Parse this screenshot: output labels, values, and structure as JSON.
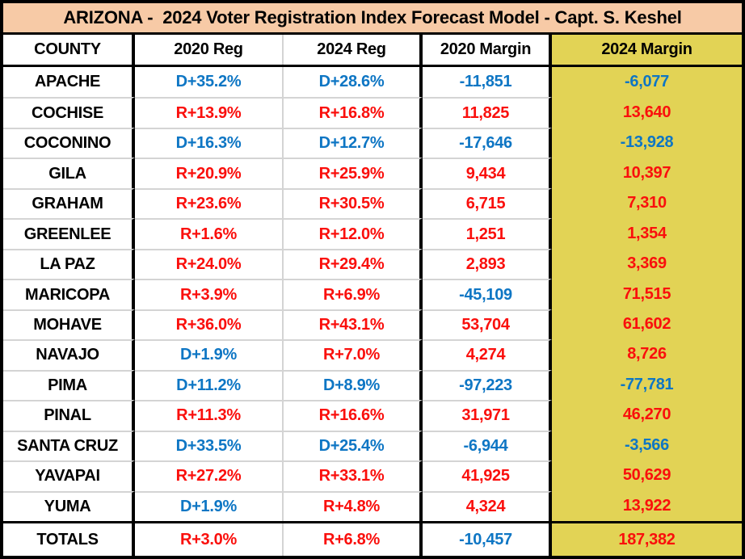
{
  "colors": {
    "title_bg": "#F7CAA6",
    "highlight_column_bg": "#E2D355",
    "dem_blue": "#0E76C4",
    "rep_red": "#FA0F0C",
    "grid_line": "#D4D4D4",
    "border": "#000000"
  },
  "chart_data": {
    "type": "table",
    "title": "ARIZONA -  2024 Voter Registration Index Forecast Model - Capt. S. Keshel",
    "columns": [
      "COUNTY",
      "2020 Reg",
      "2024 Reg",
      "2020 Margin",
      "2024 Margin"
    ],
    "highlighted_column": "2024 Margin",
    "rows": [
      {
        "county": "APACHE",
        "values": [
          "D+35.2%",
          "D+28.6%",
          "-11,851",
          "-6,077"
        ]
      },
      {
        "county": "COCHISE",
        "values": [
          "R+13.9%",
          "R+16.8%",
          "11,825",
          "13,640"
        ]
      },
      {
        "county": "COCONINO",
        "values": [
          "D+16.3%",
          "D+12.7%",
          "-17,646",
          "-13,928"
        ]
      },
      {
        "county": "GILA",
        "values": [
          "R+20.9%",
          "R+25.9%",
          "9,434",
          "10,397"
        ]
      },
      {
        "county": "GRAHAM",
        "values": [
          "R+23.6%",
          "R+30.5%",
          "6,715",
          "7,310"
        ]
      },
      {
        "county": "GREENLEE",
        "values": [
          "R+1.6%",
          "R+12.0%",
          "1,251",
          "1,354"
        ]
      },
      {
        "county": "LA PAZ",
        "values": [
          "R+24.0%",
          "R+29.4%",
          "2,893",
          "3,369"
        ]
      },
      {
        "county": "MARICOPA",
        "values": [
          "R+3.9%",
          "R+6.9%",
          "-45,109",
          "71,515"
        ]
      },
      {
        "county": "MOHAVE",
        "values": [
          "R+36.0%",
          "R+43.1%",
          "53,704",
          "61,602"
        ]
      },
      {
        "county": "NAVAJO",
        "values": [
          "D+1.9%",
          "R+7.0%",
          "4,274",
          "8,726"
        ]
      },
      {
        "county": "PIMA",
        "values": [
          "D+11.2%",
          "D+8.9%",
          "-97,223",
          "-77,781"
        ]
      },
      {
        "county": "PINAL",
        "values": [
          "R+11.3%",
          "R+16.6%",
          "31,971",
          "46,270"
        ]
      },
      {
        "county": "SANTA CRUZ",
        "values": [
          "D+33.5%",
          "D+25.4%",
          "-6,944",
          "-3,566"
        ]
      },
      {
        "county": "YAVAPAI",
        "values": [
          "R+27.2%",
          "R+33.1%",
          "41,925",
          "50,629"
        ]
      },
      {
        "county": "YUMA",
        "values": [
          "D+1.9%",
          "R+4.8%",
          "4,324",
          "13,922"
        ]
      }
    ],
    "totals": {
      "county": "TOTALS",
      "values": [
        "R+3.0%",
        "R+6.8%",
        "-10,457",
        "187,382"
      ]
    },
    "color_rule": "values starting with D or minus are blue (Democrat lean), otherwise red (Republican lean)"
  }
}
